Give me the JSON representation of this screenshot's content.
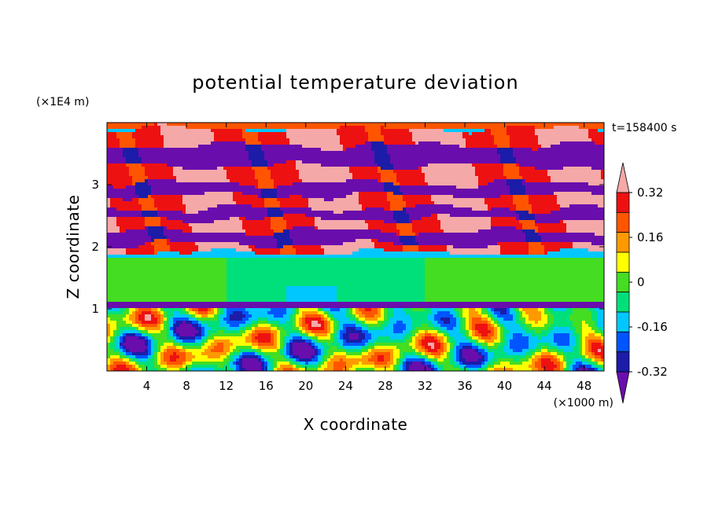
{
  "chart_data": {
    "type": "heatmap",
    "title": "potential temperature deviation",
    "xlabel": "X coordinate",
    "ylabel": "Z coordinate",
    "x_unit": "(×1000 m)",
    "y_unit": "(×1E4 m)",
    "time_label": "t=158400 s",
    "xlim": [
      0,
      50
    ],
    "ylim": [
      0,
      4
    ],
    "x_ticks": [
      4,
      8,
      12,
      16,
      20,
      24,
      28,
      32,
      36,
      40,
      44,
      48
    ],
    "y_ticks": [
      1,
      2,
      3
    ],
    "colorbar": {
      "labels": [
        "0.32",
        "0.16",
        "0",
        "-0.16",
        "-0.32"
      ],
      "label_values": [
        0.32,
        0.16,
        0,
        -0.16,
        -0.32
      ],
      "levels": [
        -0.4,
        -0.32,
        -0.24,
        -0.16,
        -0.08,
        0,
        0.08,
        0.16,
        0.24,
        0.32,
        0.4
      ],
      "colors": [
        "#6a0dad",
        "#1c1ca8",
        "#0055ff",
        "#00c8ff",
        "#00e07a",
        "#44dd22",
        "#ffff00",
        "#ff9900",
        "#ff5500",
        "#ee1111",
        "#f5a8a8"
      ],
      "extend": "both"
    },
    "fields": {
      "top_bands": [
        {
          "z": [
            3.63,
            3.9
          ],
          "value": 0.45
        },
        {
          "z": [
            3.47,
            3.63
          ],
          "value": -0.45
        },
        {
          "z": [
            3.3,
            3.47
          ],
          "value": -0.45
        },
        {
          "z": [
            3.02,
            3.3
          ],
          "value": 0.45
        },
        {
          "z": [
            2.83,
            3.02
          ],
          "value": -0.45
        },
        {
          "z": [
            2.62,
            2.83
          ],
          "value": 0.45
        },
        {
          "z": [
            2.45,
            2.62
          ],
          "value": -0.45
        },
        {
          "z": [
            2.25,
            2.45
          ],
          "value": 0.45
        },
        {
          "z": [
            2.04,
            2.25
          ],
          "value": -0.45
        },
        {
          "z": [
            1.9,
            2.04
          ],
          "value": 0.45
        }
      ],
      "mid_layer": {
        "z": [
          1.1,
          1.85
        ],
        "value": 0.02
      },
      "boundary_layer": {
        "z": [
          0,
          1.05
        ],
        "range": [
          -0.45,
          0.45
        ]
      }
    }
  }
}
